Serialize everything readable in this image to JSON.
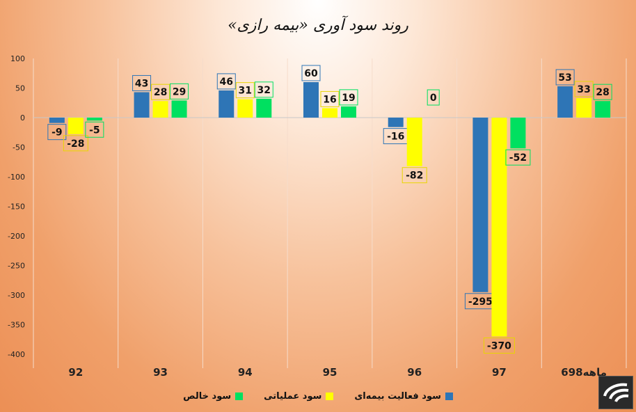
{
  "chart_data": {
    "type": "bar",
    "title": "روند سود آوری «بیمه رازی»",
    "categories": [
      "92",
      "93",
      "94",
      "95",
      "96",
      "97",
      "6ماهه98"
    ],
    "series": [
      {
        "name": "سود فعالیت بیمه‌ای",
        "color": "#2e75b6",
        "values": [
          -9,
          43,
          46,
          60,
          -16,
          -295,
          53
        ]
      },
      {
        "name": "سود عملیاتی",
        "color": "#ffff00",
        "values": [
          -28,
          28,
          31,
          16,
          -82,
          -370,
          33
        ]
      },
      {
        "name": "سود خالص",
        "color": "#00e060",
        "values": [
          -5,
          29,
          32,
          19,
          0,
          -52,
          28
        ]
      }
    ],
    "ylim": [
      -400,
      100
    ],
    "yticks": [
      100,
      50,
      0,
      -50,
      -100,
      -150,
      -200,
      -250,
      -300,
      -350,
      -400
    ],
    "grid": "vertical-separators",
    "legend": "bottom"
  }
}
